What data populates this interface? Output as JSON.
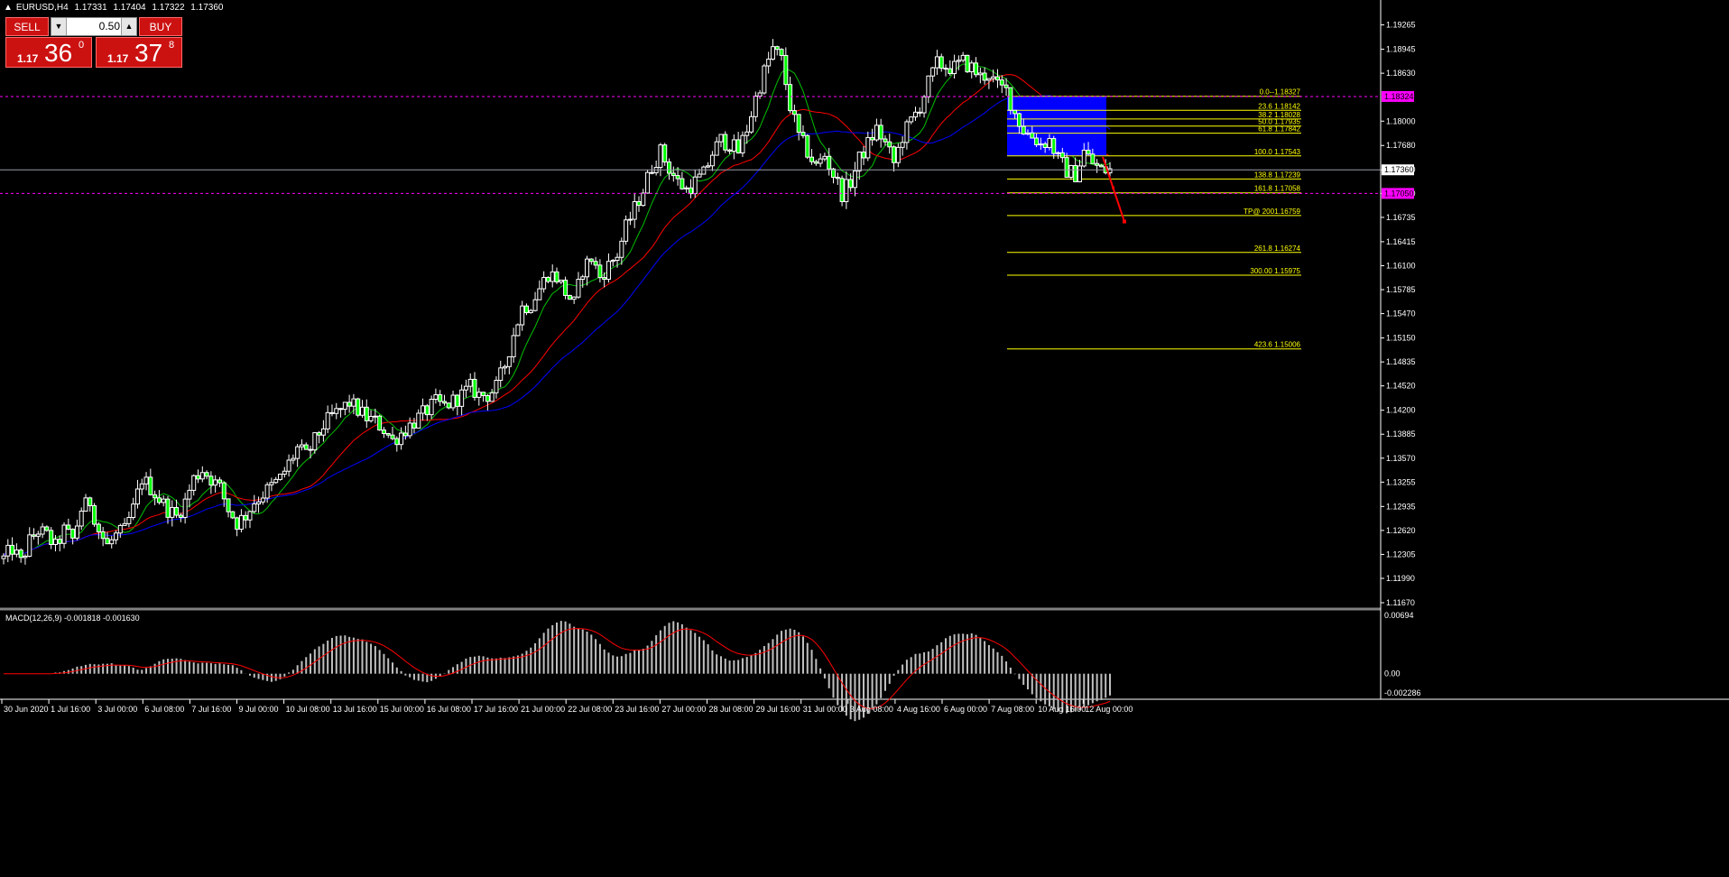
{
  "window": {
    "symbol": "EURUSD,H4",
    "quote": [
      "1.17331",
      "1.17404",
      "1.17322",
      "1.17360"
    ]
  },
  "trade_panel": {
    "sell_label": "SELL",
    "buy_label": "BUY",
    "lot": "0.50",
    "sell_price": {
      "prefix": "1.17",
      "big": "36",
      "sup": "0"
    },
    "buy_price": {
      "prefix": "1.17",
      "big": "37",
      "sup": "8"
    }
  },
  "price_axis": {
    "ticks": [
      "1.19265",
      "1.18945",
      "1.18630",
      "1.18000",
      "1.17680",
      "1.17360",
      "1.17050",
      "1.16735",
      "1.16415",
      "1.16100",
      "1.15785",
      "1.15470",
      "1.15150",
      "1.14835",
      "1.14520",
      "1.14200",
      "1.13885",
      "1.13570",
      "1.13255",
      "1.12935",
      "1.12620",
      "1.12305",
      "1.11990",
      "1.11670"
    ],
    "current_price": "1.17360",
    "markers": [
      "1.18324",
      "1.17050"
    ]
  },
  "time_axis": {
    "labels": [
      "30 Jun 2020",
      "1 Jul 16:00",
      "3 Jul 00:00",
      "6 Jul 08:00",
      "7 Jul 16:00",
      "9 Jul 00:00",
      "10 Jul 08:00",
      "13 Jul 16:00",
      "15 Jul 00:00",
      "16 Jul 08:00",
      "17 Jul 16:00",
      "21 Jul 00:00",
      "22 Jul 08:00",
      "23 Jul 16:00",
      "27 Jul 00:00",
      "28 Jul 08:00",
      "29 Jul 16:00",
      "31 Jul 00:00",
      "3 Aug 08:00",
      "4 Aug 16:00",
      "6 Aug 00:00",
      "7 Aug 08:00",
      "10 Aug 16:00",
      "12 Aug 00:00"
    ]
  },
  "macd": {
    "label": "MACD(12,26,9) -0.001818 -0.001630",
    "ticks": [
      "0.00694",
      "0.00",
      "-0.002286"
    ]
  },
  "fibonacci": [
    {
      "label": "0.0--1.18327",
      "value": 1.18327
    },
    {
      "label": "23.6  1.18142",
      "value": 1.18142
    },
    {
      "label": "38.2  1.18028",
      "value": 1.18028
    },
    {
      "label": "50.0  1.17935",
      "value": 1.17935
    },
    {
      "label": "61.8  1.17842",
      "value": 1.17842
    },
    {
      "label": "100.0  1.17543",
      "value": 1.17543
    },
    {
      "label": "138.8  1.17239",
      "value": 1.17239
    },
    {
      "label": "161.8  1.17058",
      "value": 1.17058
    },
    {
      "label": "TP@ 2001.16759",
      "value": 1.16759
    },
    {
      "label": "261.8  1.16274",
      "value": 1.16274
    },
    {
      "label": "300.00  1.15975",
      "value": 1.15975
    },
    {
      "label": "423.6  1.15006",
      "value": 1.15006
    }
  ],
  "colors": {
    "background": "#000000",
    "candle": "#ffffff",
    "candle_bull_fill": "#000000",
    "bear_fill": "#00ff00",
    "ma_fast": "#00c000",
    "ma_mid": "#ff0000",
    "ma_slow": "#0000ff",
    "fib": "#ffff00",
    "rect": "#0000ff",
    "marker_line": "#ff00ff",
    "arrow": "#ff0000",
    "macd_hist": "#c0c0c0",
    "macd_signal": "#ff0000"
  },
  "chart_data": {
    "type": "candlestick",
    "symbol": "EURUSD",
    "timeframe": "H4",
    "ylim": [
      1.1167,
      1.1945
    ],
    "x_labels": [
      "30 Jun 2020",
      "1 Jul 16:00",
      "3 Jul 00:00",
      "6 Jul 08:00",
      "7 Jul 16:00",
      "9 Jul 00:00",
      "10 Jul 08:00",
      "13 Jul 16:00",
      "15 Jul 00:00",
      "16 Jul 08:00",
      "17 Jul 16:00",
      "21 Jul 00:00",
      "22 Jul 08:00",
      "23 Jul 16:00",
      "27 Jul 00:00",
      "28 Jul 08:00",
      "29 Jul 16:00",
      "31 Jul 00:00",
      "3 Aug 08:00",
      "4 Aug 16:00",
      "6 Aug 00:00",
      "7 Aug 08:00",
      "10 Aug 16:00",
      "12 Aug 00:00"
    ],
    "close_path": [
      [
        0,
        1.1225
      ],
      [
        2,
        1.1238
      ],
      [
        4,
        1.122
      ],
      [
        6,
        1.1248
      ],
      [
        8,
        1.1262
      ],
      [
        10,
        1.1255
      ],
      [
        12,
        1.124
      ],
      [
        14,
        1.1262
      ],
      [
        16,
        1.125
      ],
      [
        18,
        1.129
      ],
      [
        20,
        1.13
      ],
      [
        22,
        1.1262
      ],
      [
        24,
        1.1242
      ],
      [
        26,
        1.1255
      ],
      [
        28,
        1.1262
      ],
      [
        30,
        1.129
      ],
      [
        32,
        1.133
      ],
      [
        34,
        1.1318
      ],
      [
        36,
        1.1303
      ],
      [
        38,
        1.129
      ],
      [
        40,
        1.128
      ],
      [
        42,
        1.13
      ],
      [
        44,
        1.133
      ],
      [
        46,
        1.1342
      ],
      [
        48,
        1.133
      ],
      [
        50,
        1.1318
      ],
      [
        52,
        1.129
      ],
      [
        54,
        1.1272
      ],
      [
        56,
        1.1282
      ],
      [
        58,
        1.13
      ],
      [
        60,
        1.131
      ],
      [
        62,
        1.132
      ],
      [
        64,
        1.133
      ],
      [
        66,
        1.135
      ],
      [
        68,
        1.137
      ],
      [
        70,
        1.136
      ],
      [
        72,
        1.138
      ],
      [
        74,
        1.14
      ],
      [
        76,
        1.1412
      ],
      [
        78,
        1.142
      ],
      [
        80,
        1.143
      ],
      [
        82,
        1.142
      ],
      [
        84,
        1.141
      ],
      [
        86,
        1.1405
      ],
      [
        88,
        1.1395
      ],
      [
        90,
        1.138
      ],
      [
        92,
        1.139
      ],
      [
        94,
        1.14
      ],
      [
        96,
        1.141
      ],
      [
        98,
        1.142
      ],
      [
        100,
        1.143
      ],
      [
        102,
        1.1425
      ],
      [
        104,
        1.1432
      ],
      [
        106,
        1.144
      ],
      [
        108,
        1.145
      ],
      [
        110,
        1.144
      ],
      [
        112,
        1.144
      ],
      [
        114,
        1.145
      ],
      [
        116,
        1.148
      ],
      [
        118,
        1.152
      ],
      [
        120,
        1.1555
      ],
      [
        122,
        1.156
      ],
      [
        124,
        1.158
      ],
      [
        126,
        1.16
      ],
      [
        128,
        1.1595
      ],
      [
        130,
        1.1575
      ],
      [
        132,
        1.156
      ],
      [
        134,
        1.1605
      ],
      [
        136,
        1.162
      ],
      [
        138,
        1.1595
      ],
      [
        140,
        1.161
      ],
      [
        142,
        1.1625
      ],
      [
        144,
        1.166
      ],
      [
        146,
        1.1685
      ],
      [
        148,
        1.171
      ],
      [
        150,
        1.174
      ],
      [
        152,
        1.176
      ],
      [
        154,
        1.1738
      ],
      [
        156,
        1.172
      ],
      [
        158,
        1.171
      ],
      [
        160,
        1.172
      ],
      [
        162,
        1.173
      ],
      [
        164,
        1.1758
      ],
      [
        166,
        1.1775
      ],
      [
        168,
        1.177
      ],
      [
        170,
        1.176
      ],
      [
        172,
        1.179
      ],
      [
        174,
        1.183
      ],
      [
        176,
        1.1865
      ],
      [
        178,
        1.1895
      ],
      [
        180,
        1.188
      ],
      [
        182,
        1.182
      ],
      [
        184,
        1.178
      ],
      [
        186,
        1.176
      ],
      [
        188,
        1.174
      ],
      [
        190,
        1.1755
      ],
      [
        192,
        1.173
      ],
      [
        194,
        1.1705
      ],
      [
        196,
        1.172
      ],
      [
        198,
        1.175
      ],
      [
        200,
        1.177
      ],
      [
        202,
        1.179
      ],
      [
        204,
        1.177
      ],
      [
        206,
        1.1745
      ],
      [
        208,
        1.178
      ],
      [
        210,
        1.18
      ],
      [
        212,
        1.182
      ],
      [
        214,
        1.185
      ],
      [
        216,
        1.1875
      ],
      [
        218,
        1.1872
      ],
      [
        220,
        1.187
      ],
      [
        222,
        1.1878
      ],
      [
        224,
        1.187
      ],
      [
        226,
        1.1858
      ],
      [
        228,
        1.1862
      ],
      [
        230,
        1.1845
      ],
      [
        232,
        1.184
      ],
      [
        234,
        1.181
      ],
      [
        236,
        1.1788
      ],
      [
        238,
        1.178
      ],
      [
        240,
        1.177
      ],
      [
        242,
        1.1775
      ],
      [
        244,
        1.175
      ],
      [
        246,
        1.1735
      ],
      [
        248,
        1.173
      ],
      [
        250,
        1.176
      ],
      [
        252,
        1.1745
      ],
      [
        254,
        1.1735
      ],
      [
        256,
        1.1736
      ]
    ],
    "annotations": {
      "fib_levels": [
        "0.0--1.18327",
        "23.6  1.18142",
        "38.2  1.18028",
        "50.0  1.17935",
        "61.8  1.17842",
        "100.0  1.17543",
        "138.8  1.17239",
        "161.8  1.17058",
        "TP@ 2001.16759",
        "261.8  1.16274",
        "300.00  1.15975",
        "423.6  1.15006"
      ],
      "horizontal_lines": [
        1.18324,
        1.1736,
        1.1705
      ],
      "arrow_to": 1.1668
    },
    "macd": {
      "label": "MACD(12,26,9) -0.001818 -0.001630",
      "ylim": [
        -0.002286,
        0.00694
      ]
    }
  }
}
